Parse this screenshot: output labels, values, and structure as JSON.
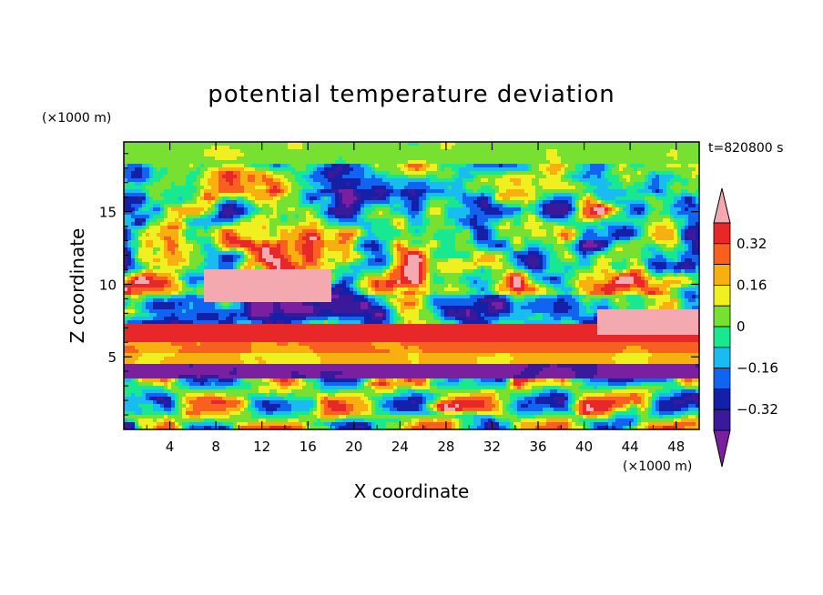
{
  "chart_data": {
    "type": "heatmap",
    "title": "potential temperature deviation",
    "xlabel": "X coordinate",
    "ylabel": "Z coordinate",
    "x_unit": "(×1000 m)",
    "y_unit": "(×1000 m)",
    "time_label": "t=820800 s",
    "xlim": [
      0,
      50
    ],
    "ylim": [
      0,
      19.8
    ],
    "x_ticks": [
      4,
      8,
      12,
      16,
      20,
      24,
      28,
      32,
      36,
      40,
      44,
      48
    ],
    "y_ticks": [
      5,
      10,
      15
    ],
    "x_tick_labels": [
      "4",
      "8",
      "12",
      "16",
      "20",
      "24",
      "28",
      "32",
      "36",
      "40",
      "44",
      "48"
    ],
    "y_tick_labels": [
      "5",
      "10",
      "15"
    ],
    "colorbar": {
      "levels": [
        -0.4,
        -0.32,
        -0.24,
        -0.16,
        -0.08,
        0,
        0.08,
        0.16,
        0.24,
        0.32,
        0.4
      ],
      "tick_values": [
        -0.32,
        -0.16,
        0,
        0.16,
        0.32
      ],
      "tick_labels": [
        "−0.32",
        "−0.16",
        "0",
        "0.16",
        "0.32"
      ],
      "colors": [
        "#7a1fa0",
        "#3a1a9a",
        "#1420a8",
        "#1064f0",
        "#18bcf0",
        "#18e890",
        "#78e030",
        "#f0f020",
        "#f8b010",
        "#f86020",
        "#e82828",
        "#f4a8b0"
      ],
      "extend": "both"
    },
    "grid": false
  }
}
